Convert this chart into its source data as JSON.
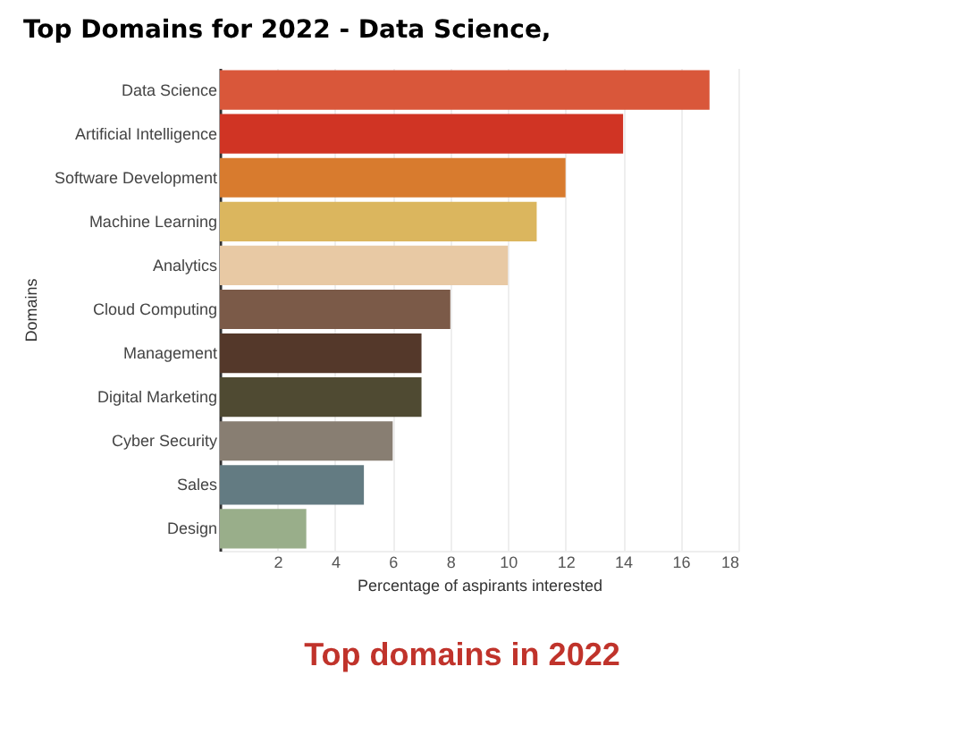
{
  "chart_data": {
    "type": "bar",
    "orientation": "horizontal",
    "title": "Top Domains for 2022 - Data Science,",
    "xlabel": "Percentage of aspirants interested",
    "ylabel": "Domains",
    "categories": [
      "Data Science",
      "Artificial Intelligence",
      "Software Development",
      "Machine Learning",
      "Analytics",
      "Cloud Computing",
      "Management",
      "Digital Marketing",
      "Cyber Security",
      "Sales",
      "Design"
    ],
    "values": [
      17,
      14,
      12,
      11,
      10,
      8,
      7,
      7,
      6,
      5,
      3
    ],
    "colors": [
      "#d9573a",
      "#d03424",
      "#d87b2e",
      "#dbb65e",
      "#e8c9a4",
      "#7b5a48",
      "#54382a",
      "#4f4a32",
      "#887e72",
      "#637b82",
      "#99ae8a"
    ],
    "xlim": [
      0,
      18
    ],
    "xticks": [
      2,
      4,
      6,
      8,
      10,
      12,
      14,
      16,
      18
    ],
    "grid": "x",
    "annotations": [
      "Top domains in 2022"
    ]
  }
}
